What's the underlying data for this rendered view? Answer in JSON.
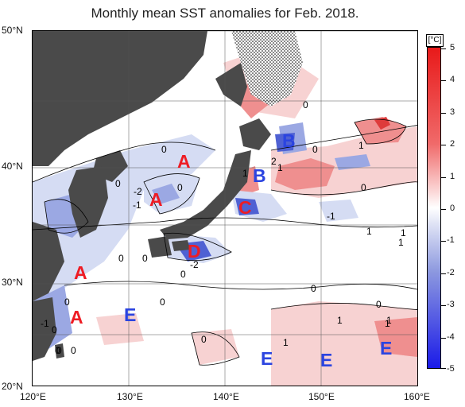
{
  "title": "Monthly mean SST anomalies for Feb. 2018.",
  "latitude_labels": [
    "50°N",
    "40°N",
    "30°N",
    "20°N"
  ],
  "longitude_labels": [
    "120°E",
    "130°E",
    "140°E",
    "150°E",
    "160°E"
  ],
  "colorbar": {
    "unit": "[°C]",
    "ticks": [
      "5",
      "4",
      "3",
      "2",
      "1",
      "0",
      "-1",
      "-2",
      "-3",
      "-4",
      "-5"
    ]
  },
  "region_markers": [
    {
      "id": "A1",
      "text": "A",
      "color": "#ee1c24"
    },
    {
      "id": "A2",
      "text": "A",
      "color": "#ee1c24"
    },
    {
      "id": "A3",
      "text": "A",
      "color": "#ee1c24"
    },
    {
      "id": "A4",
      "text": "A",
      "color": "#ee1c24"
    },
    {
      "id": "B1",
      "text": "B",
      "color": "#2b44e0"
    },
    {
      "id": "B2",
      "text": "B",
      "color": "#2b44e0"
    },
    {
      "id": "C",
      "text": "C",
      "color": "#ee1c24"
    },
    {
      "id": "D",
      "text": "D",
      "color": "#ee1c24"
    },
    {
      "id": "E1",
      "text": "E",
      "color": "#2b44e0"
    },
    {
      "id": "E2",
      "text": "E",
      "color": "#2b44e0"
    },
    {
      "id": "E3",
      "text": "E",
      "color": "#2b44e0"
    },
    {
      "id": "E4",
      "text": "E",
      "color": "#2b44e0"
    }
  ],
  "contour_labels": [
    "0",
    "0",
    "-2",
    "-1",
    "0",
    "0",
    "0",
    "0",
    "-1",
    "0",
    "0",
    "0",
    "0",
    "1",
    "2",
    "1",
    "1",
    "0",
    "1",
    "0",
    "-1",
    "1",
    "1",
    "0",
    "-2",
    "0",
    "0",
    "1",
    "0",
    "0",
    "1",
    "0",
    "1",
    "1"
  ],
  "colors": {
    "land": "#4a4a4a",
    "sea_neutral": "#ffffff",
    "warm_1": "#f7d2d2",
    "warm_2": "#ef8f8f",
    "warm_3": "#de3b3b",
    "cool_1": "#d5dcf3",
    "cool_2": "#9ba8e3",
    "cool_3": "#4f61d3",
    "ice_hatch": "#000000",
    "grid": "#555555"
  }
}
